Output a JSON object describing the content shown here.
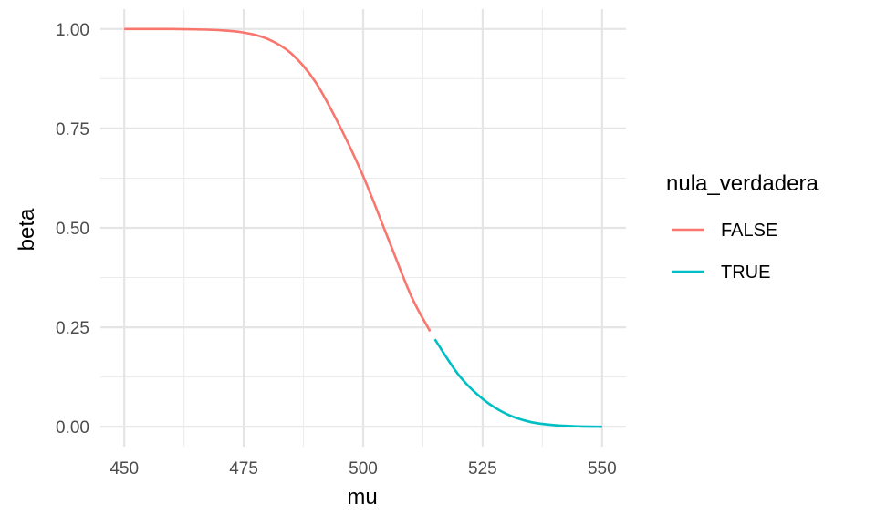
{
  "chart_data": {
    "type": "line",
    "title": "",
    "xlabel": "mu",
    "ylabel": "beta",
    "xlim": [
      450,
      550
    ],
    "ylim": [
      0,
      1
    ],
    "x_ticks": [
      450,
      475,
      500,
      525,
      550
    ],
    "y_ticks": [
      0,
      0.25,
      0.5,
      0.75,
      1
    ],
    "x_tick_labels": [
      "450",
      "475",
      "500",
      "525",
      "550"
    ],
    "y_tick_labels": [
      "0.00",
      "0.25",
      "0.50",
      "0.75",
      "1.00"
    ],
    "grid": true,
    "legend": {
      "title": "nula_verdadera",
      "position": "right"
    },
    "series": [
      {
        "name": "FALSE",
        "color": "#F8766D",
        "x": [
          450,
          455,
          460,
          465,
          470,
          475,
          480,
          485,
          490,
          495,
          500,
          505,
          510,
          514
        ],
        "y": [
          1.0,
          1.0,
          1.0,
          0.999,
          0.997,
          0.991,
          0.975,
          0.938,
          0.867,
          0.758,
          0.63,
          0.48,
          0.33,
          0.24
        ]
      },
      {
        "name": "TRUE",
        "color": "#00BFC4",
        "x": [
          515,
          520,
          525,
          530,
          535,
          540,
          545,
          550
        ],
        "y": [
          0.22,
          0.13,
          0.07,
          0.032,
          0.012,
          0.004,
          0.001,
          0.0
        ]
      }
    ]
  }
}
